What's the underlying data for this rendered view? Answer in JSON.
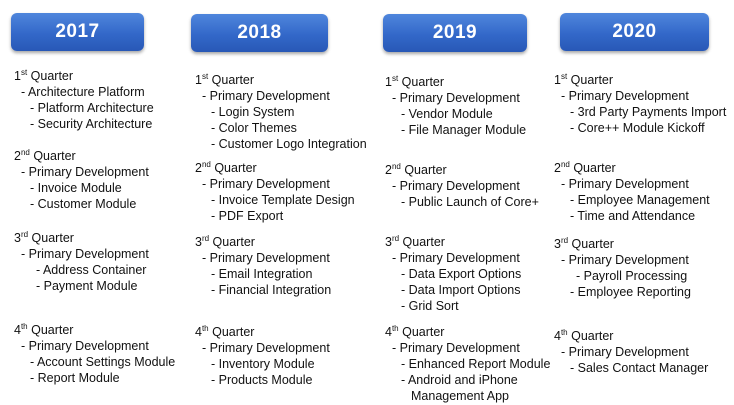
{
  "years": [
    {
      "label": "2017",
      "quarters": [
        {
          "num": "1",
          "sup": "st",
          "word": "Quarter",
          "items": [
            {
              "text": "- Architecture Platform",
              "level": 1
            },
            {
              "text": "- Platform Architecture",
              "level": 2
            },
            {
              "text": "- Security Architecture",
              "level": 2
            }
          ]
        },
        {
          "num": "2",
          "sup": "nd",
          "word": "Quarter",
          "items": [
            {
              "text": "- Primary Development",
              "level": 1
            },
            {
              "text": "- Invoice Module",
              "level": 2
            },
            {
              "text": "- Customer Module",
              "level": 2
            }
          ]
        },
        {
          "num": "3",
          "sup": "rd",
          "word": "Quarter",
          "items": [
            {
              "text": "- Primary Development",
              "level": 1
            },
            {
              "text": "- Address Container",
              "level": 3
            },
            {
              "text": "- Payment Module",
              "level": 3
            }
          ]
        },
        {
          "num": "4",
          "sup": "th",
          "word": "Quarter",
          "items": [
            {
              "text": "- Primary Development",
              "level": 1
            },
            {
              "text": "- Account Settings Module",
              "level": 2
            },
            {
              "text": "- Report Module",
              "level": 2
            }
          ]
        }
      ]
    },
    {
      "label": "2018",
      "quarters": [
        {
          "num": "1",
          "sup": "st",
          "word": "Quarter",
          "items": [
            {
              "text": "- Primary Development",
              "level": 1
            },
            {
              "text": "- Login System",
              "level": 2
            },
            {
              "text": "- Color Themes",
              "level": 2
            },
            {
              "text": "- Customer Logo Integration",
              "level": 2
            }
          ]
        },
        {
          "num": "2",
          "sup": "nd",
          "word": "Quarter",
          "items": [
            {
              "text": "- Primary Development",
              "level": 1
            },
            {
              "text": "- Invoice Template Design",
              "level": 2
            },
            {
              "text": "- PDF Export",
              "level": 2
            }
          ]
        },
        {
          "num": "3",
          "sup": "rd",
          "word": "Quarter",
          "items": [
            {
              "text": "- Primary Development",
              "level": 1
            },
            {
              "text": "- Email Integration",
              "level": 2
            },
            {
              "text": "- Financial Integration",
              "level": 2
            }
          ]
        },
        {
          "num": "4",
          "sup": "th",
          "word": "Quarter",
          "items": [
            {
              "text": "- Primary Development",
              "level": 1
            },
            {
              "text": "- Inventory Module",
              "level": 2
            },
            {
              "text": "- Products Module",
              "level": 2
            }
          ]
        }
      ]
    },
    {
      "label": "2019",
      "quarters": [
        {
          "num": "1",
          "sup": "st",
          "word": "Quarter",
          "items": [
            {
              "text": "- Primary Development",
              "level": 1
            },
            {
              "text": "- Vendor Module",
              "level": 2
            },
            {
              "text": "- File Manager Module",
              "level": 2
            }
          ]
        },
        {
          "num": "2",
          "sup": "nd",
          "word": "Quarter",
          "items": [
            {
              "text": "- Primary Development",
              "level": 1
            },
            {
              "text": "- Public Launch of Core+",
              "level": 2
            }
          ]
        },
        {
          "num": "3",
          "sup": "rd",
          "word": "Quarter",
          "items": [
            {
              "text": "- Primary Development",
              "level": 1
            },
            {
              "text": "- Data Export Options",
              "level": 2
            },
            {
              "text": "- Data Import Options",
              "level": 2
            },
            {
              "text": "- Grid Sort",
              "level": 2
            }
          ]
        },
        {
          "num": "4",
          "sup": "th",
          "word": "Quarter",
          "items": [
            {
              "text": "- Primary Development",
              "level": 1
            },
            {
              "text": "- Enhanced Report Module",
              "level": 2
            },
            {
              "text": "- Android and iPhone",
              "level": 2
            },
            {
              "text": "Management App",
              "level": 4
            }
          ]
        }
      ]
    },
    {
      "label": "2020",
      "quarters": [
        {
          "num": "1",
          "sup": "st",
          "word": "Quarter",
          "items": [
            {
              "text": "- Primary Development",
              "level": 1
            },
            {
              "text": "- 3rd Party Payments Import",
              "level": 2
            },
            {
              "text": "- Core++ Module Kickoff",
              "level": 2
            }
          ]
        },
        {
          "num": "2",
          "sup": "nd",
          "word": "Quarter",
          "items": [
            {
              "text": "- Primary Development",
              "level": 1
            },
            {
              "text": "- Employee Management",
              "level": 2
            },
            {
              "text": "- Time and Attendance",
              "level": 2
            }
          ]
        },
        {
          "num": "3",
          "sup": "rd",
          "word": "Quarter",
          "items": [
            {
              "text": "- Primary Development",
              "level": 1
            },
            {
              "text": "- Payroll Processing",
              "level": 3
            },
            {
              "text": "- Employee Reporting",
              "level": 2
            }
          ]
        },
        {
          "num": "4",
          "sup": "th",
          "word": "Quarter",
          "items": [
            {
              "text": "- Primary Development",
              "level": 1
            },
            {
              "text": "- Sales Contact Manager",
              "level": 2
            }
          ]
        }
      ]
    }
  ],
  "colors": {
    "header_blue": "#3368c9",
    "header_text": "#ffffff",
    "body_text": "#111111"
  }
}
